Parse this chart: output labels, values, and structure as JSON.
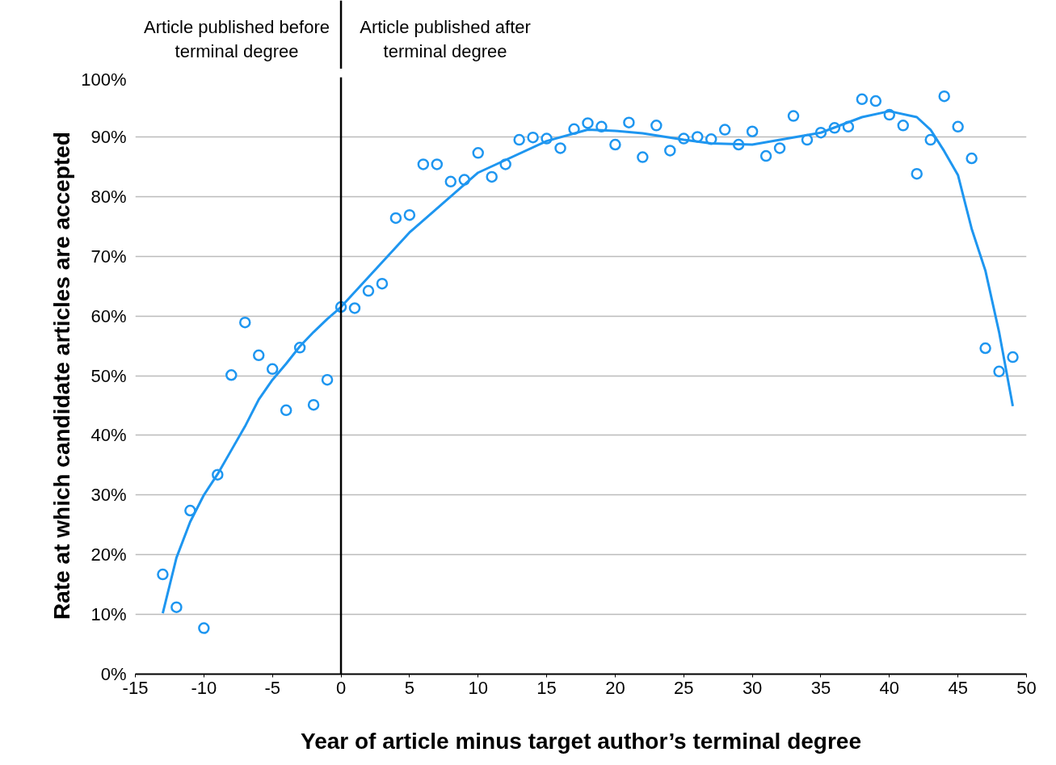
{
  "chart_data": {
    "type": "scatter",
    "xlabel": "Year of article minus target author’s terminal degree",
    "ylabel": "Rate at which candidate articles are accepted",
    "annotations": [
      "Article published before terminal degree",
      "Article published after terminal degree"
    ],
    "ref_lines": [
      {
        "axis": "x",
        "value": 0,
        "color": "#000000"
      }
    ],
    "xlim": [
      -15,
      50
    ],
    "xticks": [
      -15,
      -10,
      -5,
      0,
      5,
      10,
      15,
      20,
      25,
      30,
      35,
      40,
      45,
      50
    ],
    "ylim": [
      0,
      100
    ],
    "yticks": [
      {
        "value": 0,
        "label": "0%"
      },
      {
        "value": 10,
        "label": "10%"
      },
      {
        "value": 20,
        "label": "20%"
      },
      {
        "value": 30,
        "label": "30%"
      },
      {
        "value": 40,
        "label": "40%"
      },
      {
        "value": 50,
        "label": "50%"
      },
      {
        "value": 60,
        "label": "60%"
      },
      {
        "value": 70,
        "label": "70%"
      },
      {
        "value": 80,
        "label": "80%"
      },
      {
        "value": 90,
        "label": "90%"
      },
      {
        "value": 100,
        "label": "100%"
      }
    ],
    "grid": "y",
    "marker": "circle",
    "series": [
      {
        "type": "scatter",
        "color": "#1e96f0",
        "x": [
          -13,
          -12,
          -11,
          -10,
          -9,
          -8,
          -7,
          -6,
          -5,
          -4,
          -3,
          -2,
          -1,
          0,
          1,
          2,
          3,
          4,
          5,
          6,
          7,
          8,
          9,
          10,
          11,
          12,
          13,
          14,
          15,
          16,
          17,
          18,
          19,
          20,
          21,
          22,
          23,
          24,
          25,
          26,
          27,
          28,
          29,
          30,
          31,
          32,
          33,
          34,
          35,
          36,
          37,
          38,
          39,
          40,
          41,
          42,
          43,
          44,
          45,
          46,
          47,
          48,
          49
        ],
        "values": [
          16.7,
          11.2,
          27.4,
          7.7,
          33.4,
          50.1,
          58.9,
          53.4,
          51.1,
          44.2,
          54.7,
          45.1,
          49.3,
          61.5,
          61.3,
          64.2,
          65.4,
          76.4,
          76.9,
          85.4,
          85.4,
          82.5,
          82.8,
          87.3,
          83.3,
          85.4,
          89.5,
          89.9,
          89.7,
          88.1,
          91.3,
          92.3,
          91.7,
          88.7,
          92.4,
          86.6,
          91.9,
          87.7,
          89.7,
          90.0,
          89.6,
          91.2,
          88.7,
          90.9,
          86.8,
          88.1,
          93.5,
          89.5,
          90.7,
          91.5,
          91.7,
          96.3,
          96.0,
          93.7,
          91.9,
          83.8,
          89.5,
          96.8,
          91.7,
          86.4,
          54.6,
          50.7,
          53.1
        ]
      },
      {
        "type": "line",
        "color": "#1e96f0",
        "marker": "none",
        "x": [
          -13,
          -12,
          -11,
          -10,
          -9,
          -8,
          -7,
          -6,
          -5,
          -4,
          -3,
          -2,
          -1,
          0,
          5,
          10,
          15,
          18,
          20,
          22,
          25,
          27,
          30,
          35,
          38,
          40,
          42,
          43,
          44,
          45,
          46,
          47,
          48,
          49
        ],
        "values": [
          10.2,
          19.5,
          25.5,
          30.0,
          33.5,
          37.5,
          41.5,
          46.0,
          49.3,
          52.0,
          54.9,
          57.3,
          59.5,
          61.5,
          74.0,
          84.0,
          89.3,
          91.2,
          91.0,
          90.6,
          89.5,
          88.9,
          88.7,
          90.7,
          93.3,
          94.3,
          93.3,
          91.2,
          87.6,
          83.6,
          74.6,
          67.6,
          57.3,
          44.9
        ]
      }
    ]
  }
}
